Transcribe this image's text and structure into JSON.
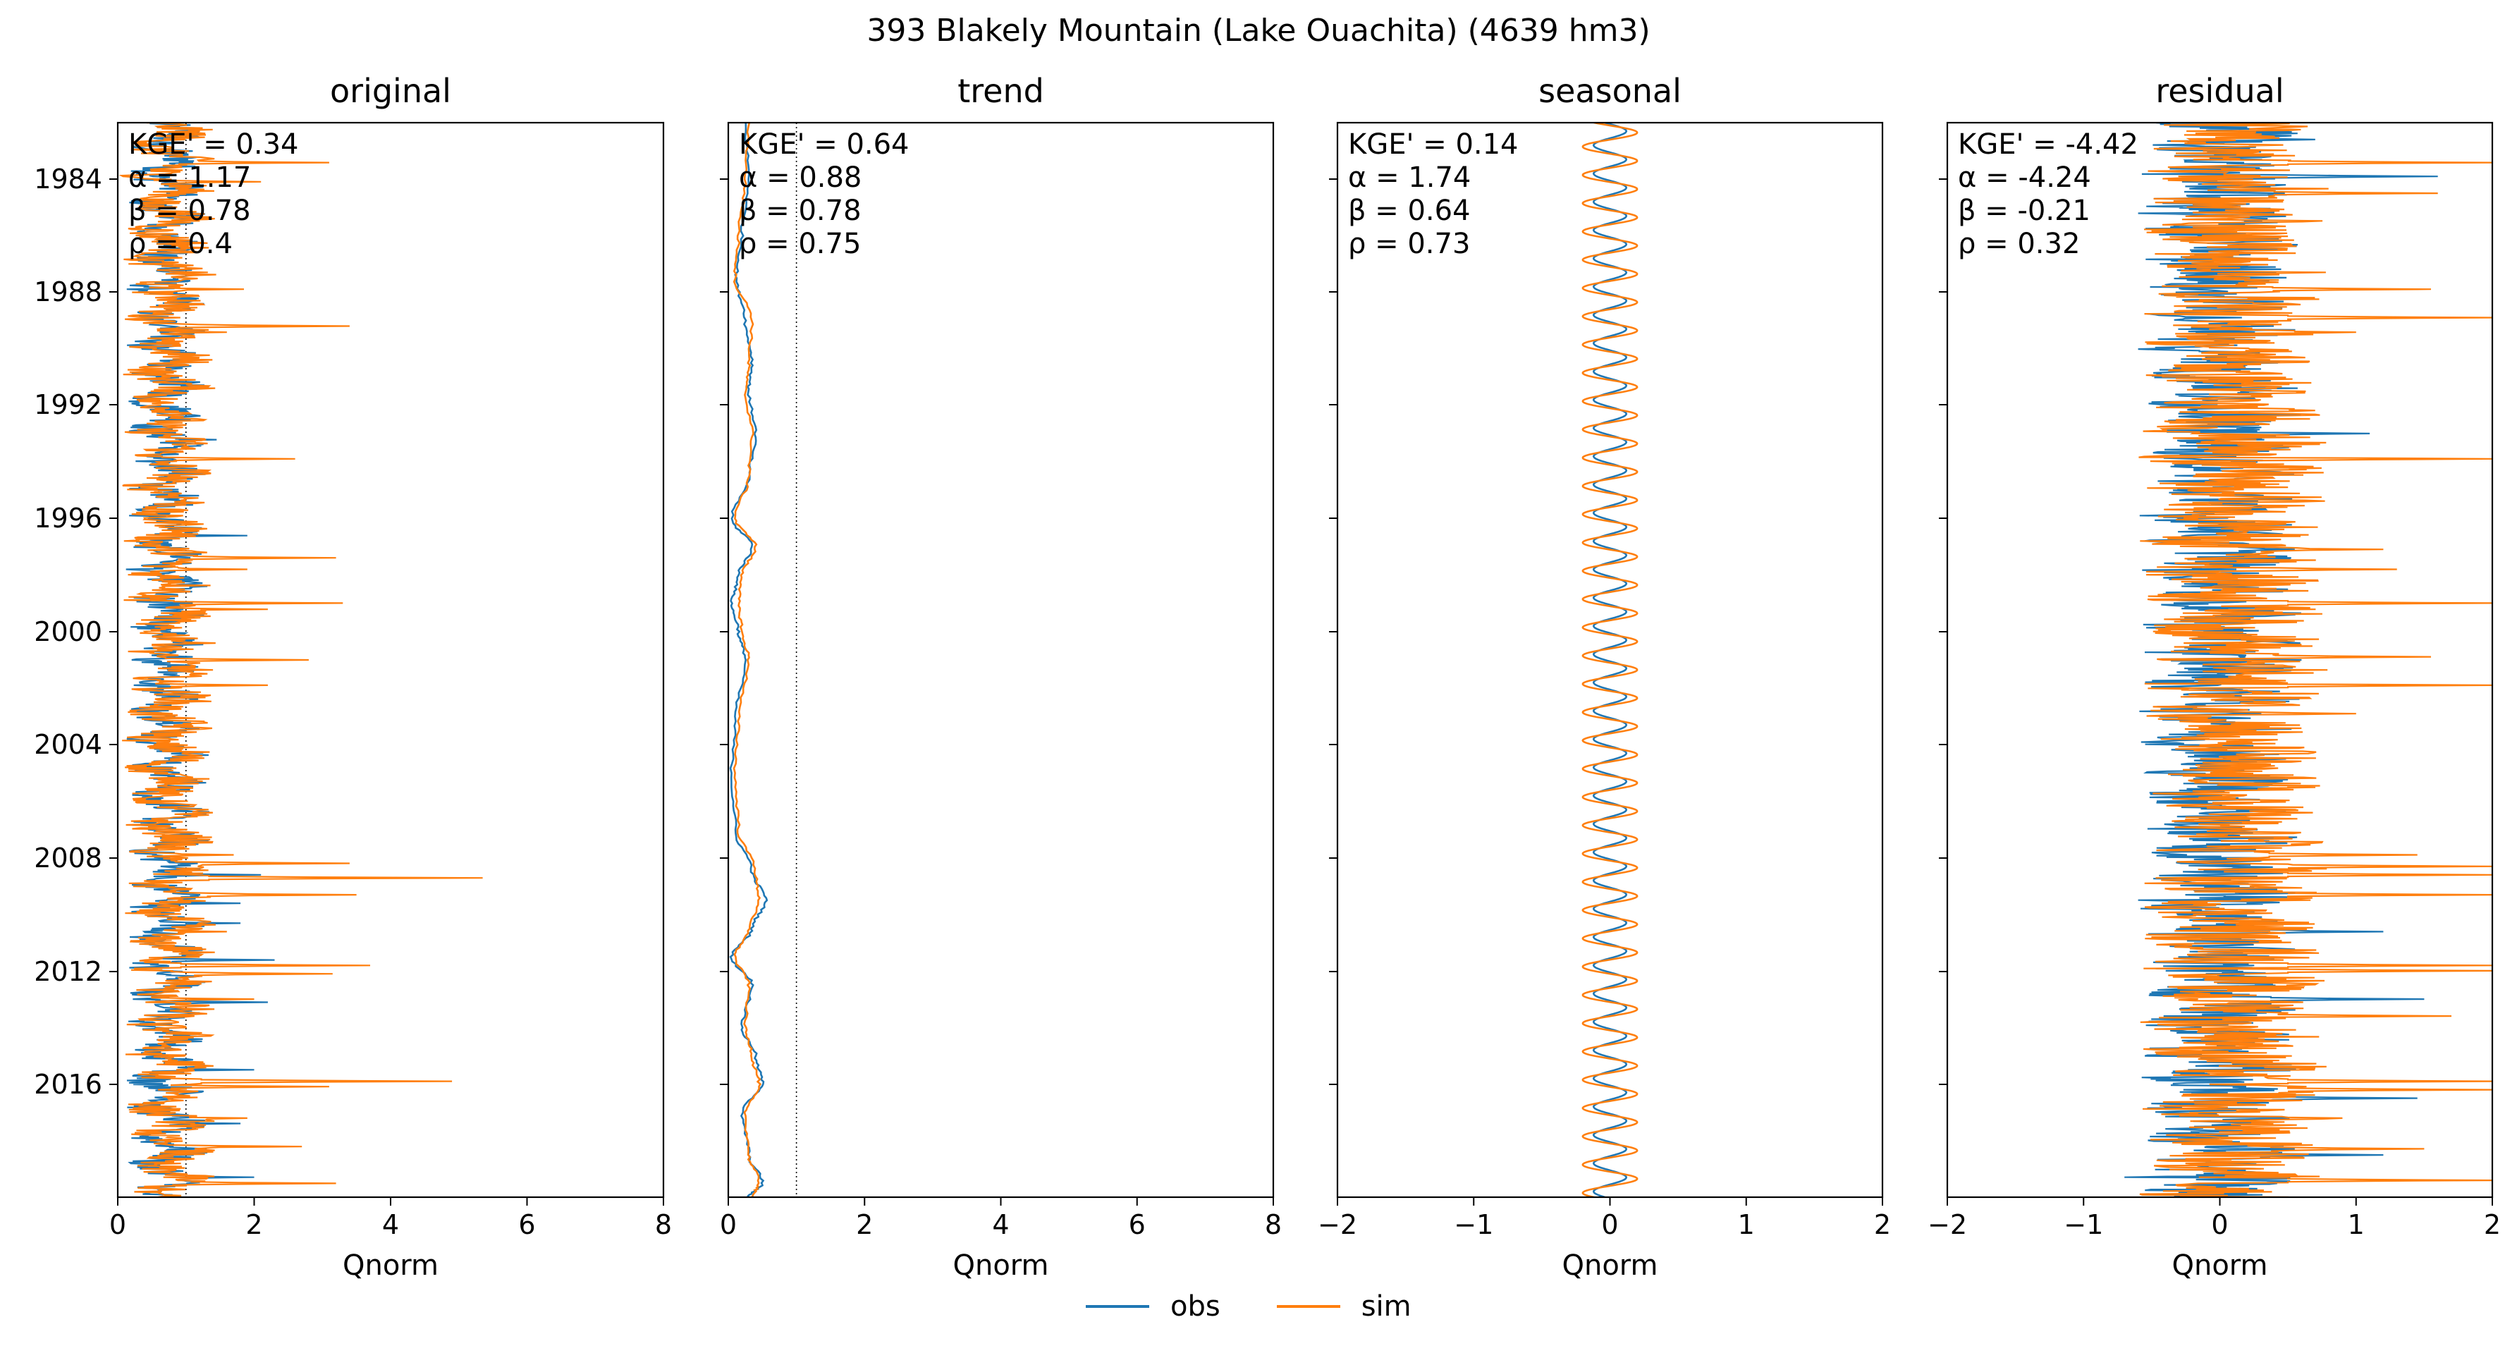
{
  "title": "393  Blakely Mountain (Lake Ouachita) (4639 hm3)",
  "colors": {
    "obs": "#1f77b4",
    "sim": "#ff7f0e"
  },
  "legend": {
    "obs": "obs",
    "sim": "sim"
  },
  "chart_data": [
    {
      "type": "line",
      "title": "original",
      "xlabel": "Qnorm",
      "ylabel": "",
      "xlim": [
        0,
        8
      ],
      "xticks": [
        "0",
        "2",
        "4",
        "6",
        "8"
      ],
      "ylim": [
        1982,
        2020
      ],
      "yticks": [
        "1984",
        "1988",
        "1992",
        "1996",
        "2000",
        "2004",
        "2008",
        "2012",
        "2016"
      ],
      "show_yticklabels": true,
      "reference_lines": [
        0,
        1
      ],
      "metrics": [
        "KGE' = 0.34",
        "α = 1.17",
        "β = 0.78",
        "ρ = 0.4"
      ],
      "obs_peaks": [
        [
          1983.0,
          1.1
        ],
        [
          1984.6,
          0.9
        ],
        [
          1989.3,
          1.1
        ],
        [
          1990.4,
          1.1
        ],
        [
          1991.2,
          1.1
        ],
        [
          1993.2,
          1.45
        ],
        [
          1994.6,
          1.1
        ],
        [
          1996.6,
          1.9
        ],
        [
          1999.0,
          1.1
        ],
        [
          2000.9,
          1.1
        ],
        [
          2002.4,
          1.05
        ],
        [
          2008.6,
          2.1
        ],
        [
          2009.6,
          1.8
        ],
        [
          2010.3,
          1.8
        ],
        [
          2011.6,
          2.3
        ],
        [
          2013.1,
          2.2
        ],
        [
          2015.5,
          2.0
        ],
        [
          2017.4,
          1.8
        ],
        [
          2019.3,
          2.0
        ]
      ],
      "sim_peaks": [
        [
          1983.4,
          3.1
        ],
        [
          1984.1,
          2.1
        ],
        [
          1987.9,
          1.85
        ],
        [
          1989.2,
          3.4
        ],
        [
          1989.4,
          1.6
        ],
        [
          1993.9,
          2.6
        ],
        [
          1997.4,
          3.2
        ],
        [
          1997.8,
          1.9
        ],
        [
          1999.0,
          3.3
        ],
        [
          1999.2,
          2.2
        ],
        [
          2001.0,
          2.8
        ],
        [
          2001.9,
          2.2
        ],
        [
          2007.9,
          1.7
        ],
        [
          2008.2,
          3.4
        ],
        [
          2008.7,
          5.35
        ],
        [
          2009.3,
          3.5
        ],
        [
          2010.6,
          1.6
        ],
        [
          2011.8,
          3.7
        ],
        [
          2012.1,
          3.15
        ],
        [
          2013.0,
          2.0
        ],
        [
          2014.0,
          1.0
        ],
        [
          2015.9,
          4.9
        ],
        [
          2016.1,
          3.1
        ],
        [
          2017.2,
          1.9
        ],
        [
          2018.2,
          2.7
        ],
        [
          2019.5,
          3.2
        ]
      ]
    },
    {
      "type": "line",
      "title": "trend",
      "xlabel": "Qnorm",
      "ylabel": "",
      "xlim": [
        0,
        8
      ],
      "xticks": [
        "0",
        "2",
        "4",
        "6",
        "8"
      ],
      "ylim": [
        1982,
        2020
      ],
      "show_yticklabels": false,
      "reference_lines": [
        0,
        1
      ],
      "metrics": [
        "KGE' = 0.64",
        "α = 0.88",
        "β = 0.78",
        "ρ = 0.75"
      ],
      "obs_profile": [
        [
          1982.0,
          0.25
        ],
        [
          1984.0,
          0.3
        ],
        [
          1986.0,
          0.2
        ],
        [
          1987.5,
          0.12
        ],
        [
          1989.0,
          0.25
        ],
        [
          1990.5,
          0.35
        ],
        [
          1991.5,
          0.3
        ],
        [
          1993.0,
          0.4
        ],
        [
          1994.5,
          0.3
        ],
        [
          1996.0,
          0.05
        ],
        [
          1997.0,
          0.35
        ],
        [
          1998.0,
          0.15
        ],
        [
          1999.0,
          0.05
        ],
        [
          2000.0,
          0.15
        ],
        [
          2001.0,
          0.25
        ],
        [
          2003.0,
          0.1
        ],
        [
          2005.0,
          0.05
        ],
        [
          2007.0,
          0.1
        ],
        [
          2008.5,
          0.35
        ],
        [
          2009.5,
          0.55
        ],
        [
          2010.5,
          0.35
        ],
        [
          2011.5,
          0.05
        ],
        [
          2012.5,
          0.35
        ],
        [
          2014.0,
          0.2
        ],
        [
          2015.0,
          0.4
        ],
        [
          2016.0,
          0.5
        ],
        [
          2017.0,
          0.2
        ],
        [
          2018.5,
          0.3
        ],
        [
          2019.5,
          0.5
        ],
        [
          2020.0,
          0.3
        ]
      ],
      "sim_profile": [
        [
          1982.0,
          0.3
        ],
        [
          1984.0,
          0.25
        ],
        [
          1986.0,
          0.15
        ],
        [
          1987.5,
          0.1
        ],
        [
          1989.0,
          0.35
        ],
        [
          1990.5,
          0.3
        ],
        [
          1991.5,
          0.25
        ],
        [
          1993.0,
          0.35
        ],
        [
          1994.5,
          0.3
        ],
        [
          1996.0,
          0.1
        ],
        [
          1997.0,
          0.4
        ],
        [
          1998.0,
          0.2
        ],
        [
          1999.0,
          0.15
        ],
        [
          2000.0,
          0.2
        ],
        [
          2001.0,
          0.3
        ],
        [
          2003.0,
          0.15
        ],
        [
          2005.0,
          0.1
        ],
        [
          2007.0,
          0.15
        ],
        [
          2008.5,
          0.4
        ],
        [
          2009.5,
          0.45
        ],
        [
          2010.5,
          0.3
        ],
        [
          2011.5,
          0.1
        ],
        [
          2012.5,
          0.3
        ],
        [
          2014.0,
          0.25
        ],
        [
          2015.0,
          0.35
        ],
        [
          2016.0,
          0.45
        ],
        [
          2017.0,
          0.25
        ],
        [
          2018.5,
          0.3
        ],
        [
          2019.5,
          0.45
        ],
        [
          2020.0,
          0.35
        ]
      ]
    },
    {
      "type": "line",
      "title": "seasonal",
      "xlabel": "Qnorm",
      "ylabel": "",
      "xlim": [
        -2,
        2
      ],
      "xticks": [
        "−2",
        "−1",
        "0",
        "1",
        "2"
      ],
      "ylim": [
        1982,
        2020
      ],
      "show_yticklabels": false,
      "metrics": [
        "KGE' = 0.14",
        "α = 1.74",
        "β = 0.64",
        "ρ = 0.73"
      ],
      "obs_amplitude": 0.12,
      "sim_amplitude": 0.2,
      "period_years": 1
    },
    {
      "type": "line",
      "title": "residual",
      "xlabel": "Qnorm",
      "ylabel": "",
      "xlim": [
        -2,
        2
      ],
      "xticks": [
        "−2",
        "−1",
        "0",
        "1",
        "2"
      ],
      "ylim": [
        1982,
        2020
      ],
      "show_yticklabels": false,
      "metrics": [
        "KGE' = -4.42",
        "α = -4.24",
        "β = -0.21",
        "ρ = 0.32"
      ],
      "obs_peaks": [
        [
          1982.6,
          0.7
        ],
        [
          1983.9,
          1.6
        ],
        [
          1985.2,
          -0.6
        ],
        [
          1990.0,
          -0.6
        ],
        [
          1993.0,
          1.1
        ],
        [
          1996.8,
          -0.55
        ],
        [
          1997.1,
          0.55
        ],
        [
          2001.0,
          0.6
        ],
        [
          2007.8,
          -0.5
        ],
        [
          2009.5,
          -0.6
        ],
        [
          2010.6,
          1.2
        ],
        [
          2013.0,
          1.5
        ],
        [
          2015.0,
          -0.55
        ],
        [
          2016.5,
          1.45
        ],
        [
          2018.5,
          1.2
        ],
        [
          2019.3,
          -0.7
        ]
      ],
      "sim_peaks": [
        [
          1983.4,
          2.0
        ],
        [
          1984.5,
          1.6
        ],
        [
          1987.9,
          1.55
        ],
        [
          1988.9,
          2.0
        ],
        [
          1989.4,
          1.0
        ],
        [
          1993.9,
          2.0
        ],
        [
          1997.1,
          1.2
        ],
        [
          1997.8,
          1.3
        ],
        [
          1999.0,
          2.0
        ],
        [
          2000.9,
          1.55
        ],
        [
          2001.9,
          2.0
        ],
        [
          2002.9,
          1.0
        ],
        [
          2007.9,
          1.45
        ],
        [
          2008.3,
          2.0
        ],
        [
          2008.6,
          2.0
        ],
        [
          2009.3,
          2.0
        ],
        [
          2011.8,
          2.0
        ],
        [
          2012.0,
          2.0
        ],
        [
          2013.6,
          1.7
        ],
        [
          2015.9,
          2.0
        ],
        [
          2016.2,
          2.0
        ],
        [
          2017.2,
          0.9
        ],
        [
          2018.3,
          1.5
        ],
        [
          2019.4,
          2.0
        ]
      ]
    }
  ]
}
